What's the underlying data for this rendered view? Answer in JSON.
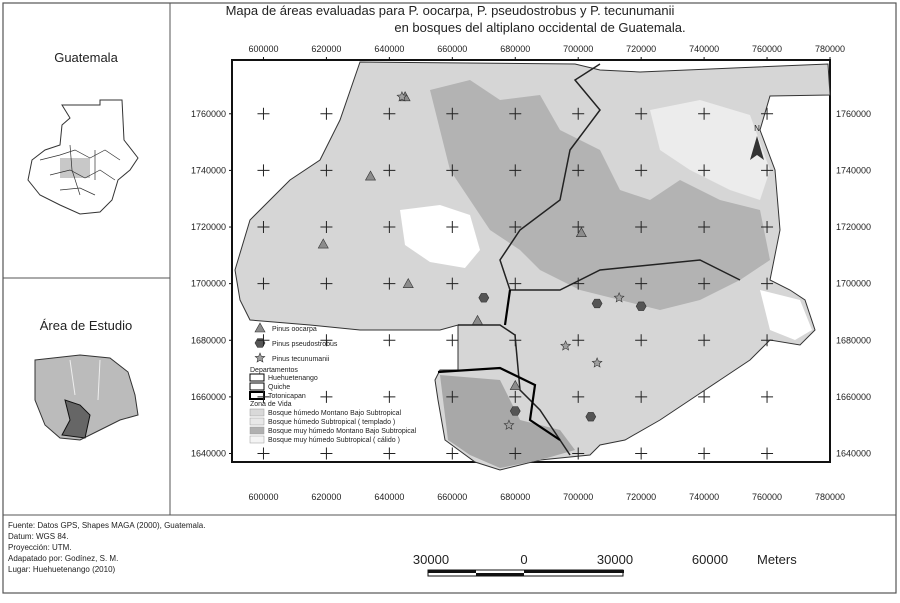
{
  "map": {
    "title": [
      "Mapa de áreas evaluadas para P. oocarpa, P. pseudostrobus y P. tecunumanii",
      "en bosques del altiplano occidental de Guatemala."
    ],
    "inset_country_label": "Guatemala",
    "inset_study_label": "Área de Estudio",
    "xlim": [
      590000,
      780000
    ],
    "ylim": [
      1637000,
      1779000
    ],
    "xticks": [
      600000,
      620000,
      640000,
      660000,
      680000,
      700000,
      720000,
      740000,
      760000,
      780000
    ],
    "yticks": [
      1640000,
      1660000,
      1680000,
      1700000,
      1720000,
      1740000,
      1760000
    ],
    "north": "N",
    "species": [
      {
        "name": "Pinus oocarpa",
        "symbol": "triangle",
        "color": "#8c8c8c",
        "x": [
          645000,
          634000,
          619000,
          646000,
          668000,
          701000,
          680000
        ],
        "y": [
          1766000,
          1738000,
          1714000,
          1700000,
          1687000,
          1718000,
          1664000
        ]
      },
      {
        "name": "Pinus pseudostrobus",
        "symbol": "hexagon",
        "color": "#555555",
        "x": [
          670000,
          706000,
          720000,
          680000,
          704000
        ],
        "y": [
          1695000,
          1693000,
          1692000,
          1655000,
          1653000
        ]
      },
      {
        "name": "Pinus tecunumanii",
        "symbol": "star",
        "color": "#a0a0a0",
        "x": [
          644000,
          713000,
          696000,
          706000,
          678000
        ],
        "y": [
          1766000,
          1695000,
          1678000,
          1672000,
          1650000
        ]
      }
    ],
    "departments_heading": "Departamentos",
    "departments": [
      "Huehuetenango",
      "Quiche",
      "Totonicapan"
    ],
    "zones_heading": "Zona de Vida",
    "zones": [
      {
        "name": "Bosque húmedo Montano Bajo Subtropical",
        "color": "#d9d9d9"
      },
      {
        "name": "Bosque húmedo Subtropical ( templado )",
        "color": "#e8e8e8"
      },
      {
        "name": "Bosque muy húmedo Montano Bajo Subtropical",
        "color": "#b0b0b0"
      },
      {
        "name": "Bosque muy húmedo Subtropical ( cálido )",
        "color": "#f4f4f4"
      }
    ],
    "footer": [
      "Fuente: Datos GPS, Shapes MAGA (2000), Guatemala.",
      "Datum:    WGS 84.",
      "Proyección: UTM.",
      "Adapatado por: Godínez, S. M.",
      "Lugar: Huehuetenango (2010)"
    ],
    "scale_bar": {
      "labels": [
        "30000",
        "0",
        "30000",
        "60000"
      ],
      "unit": "Meters"
    }
  }
}
